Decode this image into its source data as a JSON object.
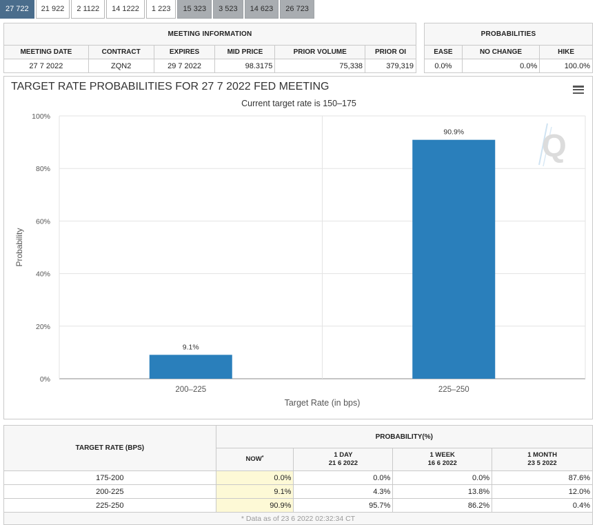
{
  "tabs": [
    {
      "label": "27 722",
      "state": "active"
    },
    {
      "label": "21 922",
      "state": "normal"
    },
    {
      "label": "2 1122",
      "state": "normal"
    },
    {
      "label": "14 1222",
      "state": "normal"
    },
    {
      "label": "1 223",
      "state": "normal"
    },
    {
      "label": "15 323",
      "state": "grey"
    },
    {
      "label": "3 523",
      "state": "grey"
    },
    {
      "label": "14 623",
      "state": "grey"
    },
    {
      "label": "26 723",
      "state": "grey"
    }
  ],
  "meeting": {
    "title": "MEETING INFORMATION",
    "headers": [
      "MEETING DATE",
      "CONTRACT",
      "EXPIRES",
      "MID PRICE",
      "PRIOR VOLUME",
      "PRIOR OI"
    ],
    "values": [
      "27 7 2022",
      "ZQN2",
      "29 7 2022",
      "98.3175",
      "75,338",
      "379,319"
    ]
  },
  "probabilities": {
    "title": "PROBABILITIES",
    "headers": [
      "EASE",
      "NO CHANGE",
      "HIKE"
    ],
    "values": [
      "0.0%",
      "0.0%",
      "100.0%"
    ]
  },
  "chart_data": {
    "type": "bar",
    "title": "TARGET RATE PROBABILITIES FOR 27 7 2022 FED MEETING",
    "subtitle": "Current target rate is 150–175",
    "xlabel": "Target Rate (in bps)",
    "ylabel": "Probability",
    "categories": [
      "200–225",
      "225–250"
    ],
    "values": [
      9.1,
      90.9
    ],
    "data_labels": [
      "9.1%",
      "90.9%"
    ],
    "ylim": [
      0,
      100
    ],
    "yticks": [
      "0%",
      "20%",
      "40%",
      "60%",
      "80%",
      "100%"
    ],
    "color": "#2a7fbb",
    "grid": true
  },
  "prob_table": {
    "left_header": "TARGET RATE (BPS)",
    "top_header": "PROBABILITY(%)",
    "now_label": "NOW",
    "now_mark": "*",
    "columns": [
      {
        "label": "1 DAY",
        "date": "21 6 2022"
      },
      {
        "label": "1 WEEK",
        "date": "16 6 2022"
      },
      {
        "label": "1 MONTH",
        "date": "23 5 2022"
      }
    ],
    "rows": [
      {
        "rate": "175-200",
        "now": "0.0%",
        "day": "0.0%",
        "week": "0.0%",
        "month": "87.6%"
      },
      {
        "rate": "200-225",
        "now": "9.1%",
        "day": "4.3%",
        "week": "13.8%",
        "month": "12.0%"
      },
      {
        "rate": "225-250",
        "now": "90.9%",
        "day": "95.7%",
        "week": "86.2%",
        "month": "0.4%"
      }
    ],
    "footnote": "* Data as of 23 6 2022 02:32:34 CT"
  },
  "icons": {
    "menu": "hamburger-menu-icon",
    "watermark": "quikstrike-q-logo"
  }
}
